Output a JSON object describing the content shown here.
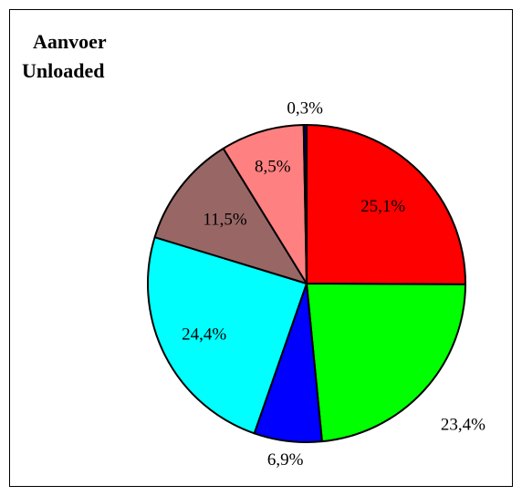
{
  "chart_data": {
    "type": "pie",
    "title": [
      "Aanvoer",
      "Unloaded"
    ],
    "values": [
      25.1,
      23.4,
      6.9,
      24.4,
      11.5,
      8.5,
      0.3
    ],
    "value_labels": [
      "25,1%",
      "23,4%",
      "6,9%",
      "24,4%",
      "11,5%",
      "8,5%",
      "0,3%"
    ],
    "colors": [
      "#ff0000",
      "#00ff00",
      "#0000ff",
      "#00ffff",
      "#996666",
      "#ff8080",
      "#000080"
    ]
  }
}
